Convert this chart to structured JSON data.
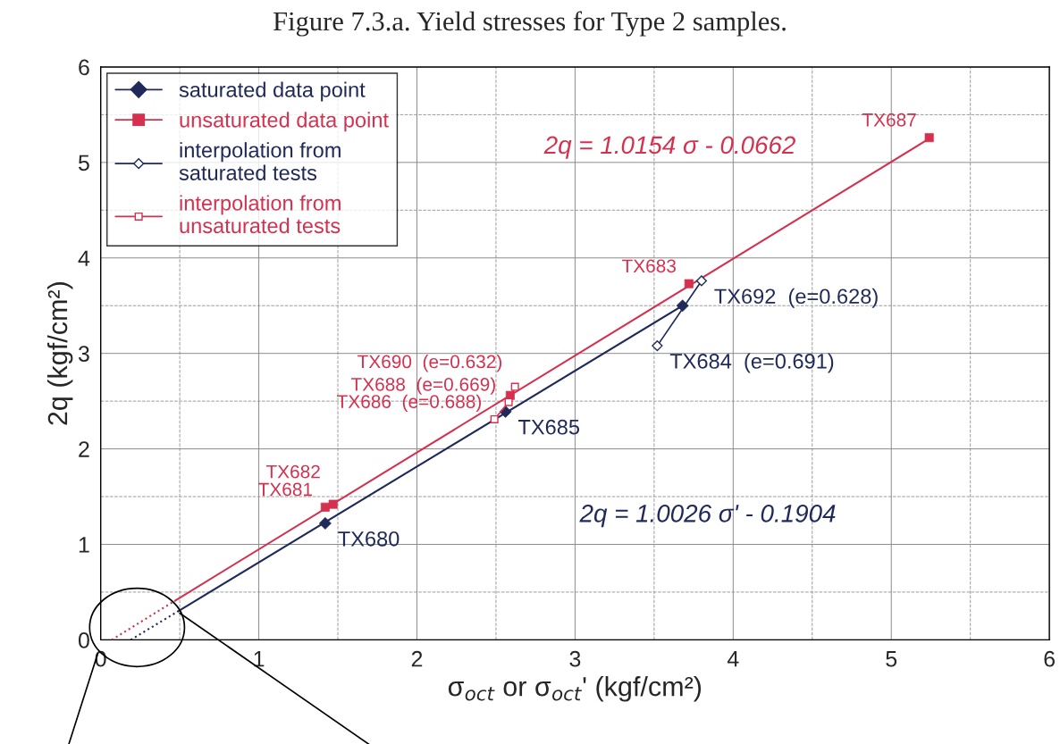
{
  "chart_data": {
    "type": "scatter",
    "title": "Figure 7.3.a. Yield stresses for Type 2 samples.",
    "xlabel": "σ$_{oct}$ or σ$_{oct}$' (kgf/cm²)",
    "ylabel": "2q (kgf/cm²)",
    "xlim": [
      0,
      6
    ],
    "ylim": [
      0,
      6
    ],
    "xticks": [
      0,
      1,
      2,
      3,
      4,
      5,
      6
    ],
    "yticks": [
      0,
      1,
      2,
      3,
      4,
      5,
      6
    ],
    "grid": true,
    "legend": "top left",
    "series": [
      {
        "name": "saturated data point",
        "marker": "diamond",
        "color": "#1f2a5a",
        "x": [
          1.42,
          2.56,
          3.68
        ],
        "values": [
          1.22,
          2.39,
          3.5
        ]
      },
      {
        "name": "unsaturated data point",
        "marker": "square",
        "color": "#d6304f",
        "x": [
          1.42,
          1.47,
          2.59,
          3.72,
          5.24
        ],
        "values": [
          1.39,
          1.42,
          2.56,
          3.73,
          5.26
        ]
      },
      {
        "name": "interpolation from\nsaturated tests",
        "type": "line",
        "marker": "diamond",
        "color": "#1f2a5a",
        "x": [
          3.52,
          3.8
        ],
        "values": [
          3.08,
          3.76
        ]
      },
      {
        "name": "interpolation from\nunsaturated tests",
        "type": "line",
        "marker": "square",
        "color": "#d6304f",
        "x": [
          2.49,
          2.58,
          2.62
        ],
        "values": [
          2.31,
          2.49,
          2.65
        ]
      },
      {
        "type": "line",
        "marker": "none",
        "line_style": "solid",
        "color": "#1f2a5a",
        "x": [
          0.49,
          3.68
        ],
        "values": [
          0.3,
          3.5
        ]
      },
      {
        "type": "line",
        "marker": "none",
        "line_style": "dotted",
        "color": "#1f2a5a",
        "x": [
          0.19,
          0.49
        ],
        "values": [
          0.0,
          0.3
        ]
      },
      {
        "type": "line",
        "marker": "none",
        "line_style": "solid",
        "color": "#d6304f",
        "x": [
          0.47,
          5.24
        ],
        "values": [
          0.41,
          5.25
        ]
      },
      {
        "type": "line",
        "marker": "none",
        "line_style": "dotted",
        "color": "#d6304f",
        "x": [
          0.07,
          0.47
        ],
        "values": [
          0.0,
          0.41
        ]
      }
    ],
    "annotations": [
      {
        "text": "TX680",
        "x": 1.42,
        "y": 1.22
      },
      {
        "text": "TX685",
        "x": 2.56,
        "y": 2.39
      },
      {
        "text": "TX684  (e=0.691)",
        "x": 3.52,
        "y": 3.08
      },
      {
        "text": "TX692  (e=0.628)",
        "x": 3.8,
        "y": 3.76
      },
      {
        "text": "TX681",
        "x": 1.42,
        "y": 1.39
      },
      {
        "text": "TX682",
        "x": 1.47,
        "y": 1.42
      },
      {
        "text": "TX686  (e=0.688)",
        "x": 2.49,
        "y": 2.31
      },
      {
        "text": "TX688  (e=0.669)",
        "x": 2.58,
        "y": 2.49
      },
      {
        "text": "TX690  (e=0.632)",
        "x": 2.62,
        "y": 2.65
      },
      {
        "text": "TX683",
        "x": 3.72,
        "y": 3.73
      },
      {
        "text": "TX687",
        "x": 5.24,
        "y": 5.26
      },
      "2q = 1.0026 σ' - 0.1904",
      "2q = 1.0154 σ - 0.0662"
    ]
  }
}
